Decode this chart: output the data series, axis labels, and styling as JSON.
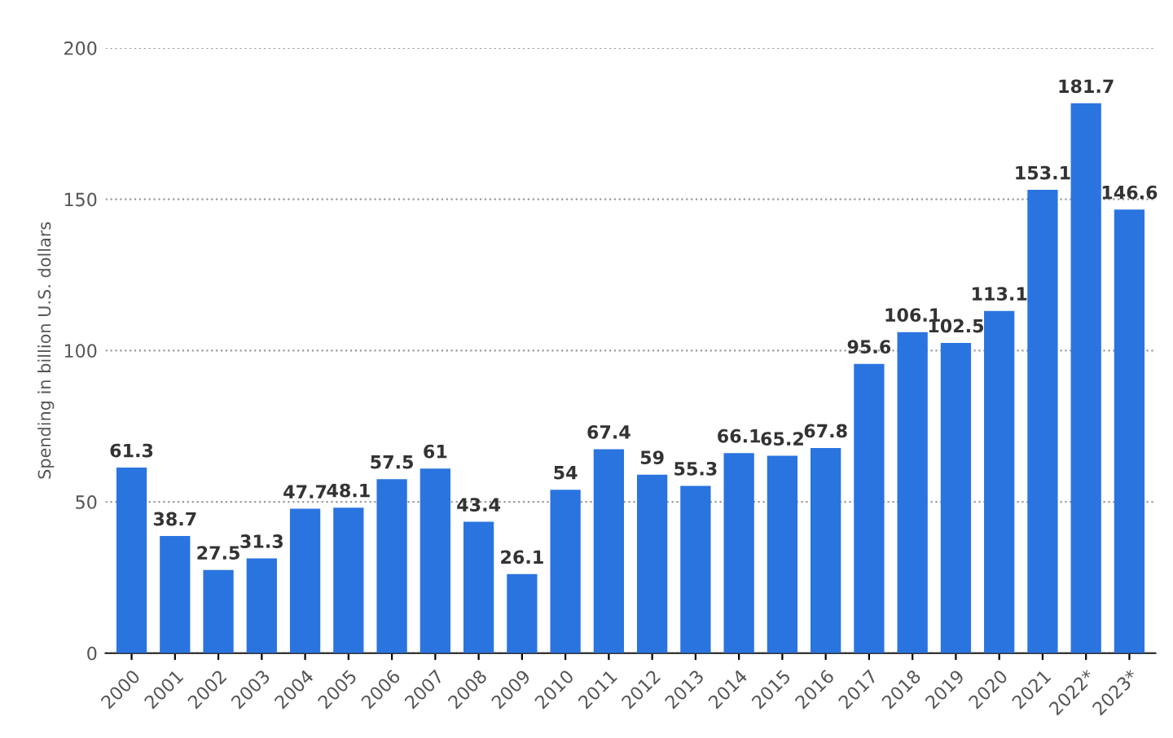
{
  "chart_data": {
    "type": "bar",
    "ylabel": "Spending in billion U.S. dollars",
    "categories": [
      "2000",
      "2001",
      "2002",
      "2003",
      "2004",
      "2005",
      "2006",
      "2007",
      "2008",
      "2009",
      "2010",
      "2011",
      "2012",
      "2013",
      "2014",
      "2015",
      "2016",
      "2017",
      "2018",
      "2019",
      "2020",
      "2021",
      "2022*",
      "2023*"
    ],
    "values": [
      61.3,
      38.7,
      27.5,
      31.3,
      47.7,
      48.1,
      57.5,
      61,
      43.4,
      26.1,
      54,
      67.4,
      59,
      55.3,
      66.1,
      65.2,
      67.8,
      95.6,
      106.1,
      102.5,
      113.1,
      153.1,
      181.7,
      146.6
    ],
    "color": "#2a74e0",
    "ylim": [
      0,
      200
    ],
    "yticks": [
      0,
      50,
      100,
      150,
      200
    ],
    "grid": "y",
    "data_labels": true
  }
}
